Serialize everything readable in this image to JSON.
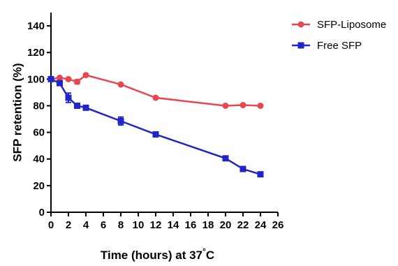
{
  "chart_data": {
    "type": "line",
    "title": "",
    "xlabel": "Time (hours) at 37°C",
    "ylabel": "SFP retention (%)",
    "xlim": [
      0,
      26
    ],
    "ylim": [
      0,
      150
    ],
    "x_ticks": [
      "0",
      "2",
      "4",
      "6",
      "8",
      "10",
      "12",
      "14",
      "16",
      "18",
      "20",
      "22",
      "24",
      "26"
    ],
    "y_ticks": [
      "0",
      "20",
      "40",
      "60",
      "80",
      "100",
      "120",
      "140"
    ],
    "grid": false,
    "legend_position": "top-right",
    "series": [
      {
        "name": "SFP-Liposome",
        "color": "#e8474f",
        "marker": "circle",
        "x": [
          0,
          1,
          2,
          3,
          4,
          8,
          12,
          20,
          22,
          24
        ],
        "y": [
          100,
          101,
          100,
          98,
          103,
          96,
          86,
          80,
          80.5,
          80
        ],
        "error": [
          0,
          0,
          0,
          1.5,
          0.5,
          0,
          0,
          0,
          0,
          0
        ]
      },
      {
        "name": "Free SFP",
        "color": "#1f25c8",
        "marker": "square",
        "x": [
          0,
          1,
          2,
          3,
          4,
          8,
          12,
          20,
          22,
          24
        ],
        "y": [
          100,
          97,
          86,
          80,
          78.5,
          68.5,
          58.5,
          40.5,
          32.5,
          28.5
        ],
        "error": [
          0,
          1,
          3.5,
          0,
          0,
          3,
          0,
          1.5,
          0,
          0
        ]
      }
    ]
  }
}
